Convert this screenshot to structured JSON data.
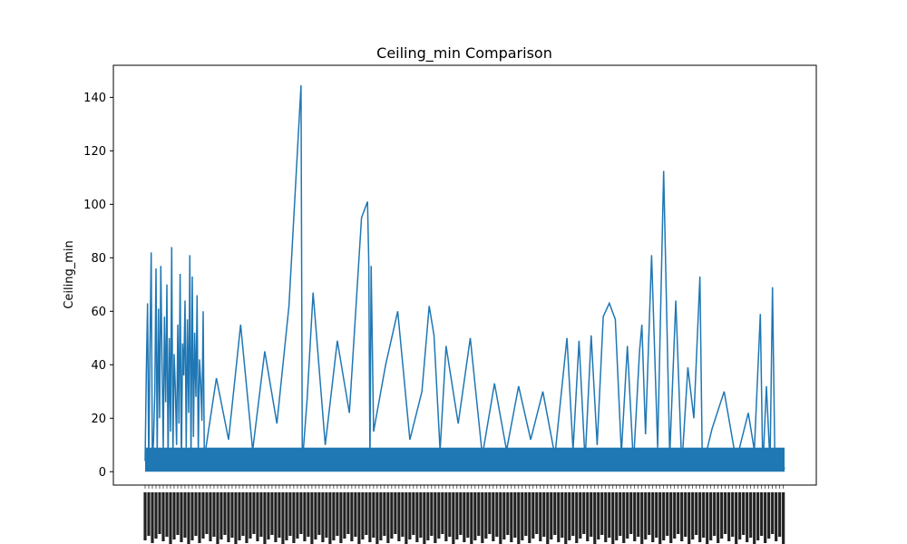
{
  "chart_data": {
    "type": "line",
    "title": "Ceiling_min Comparison",
    "xlabel": "",
    "ylabel": "Ceiling_min",
    "ylim": [
      -5,
      152
    ],
    "yticks": [
      0,
      20,
      40,
      60,
      80,
      100,
      120,
      140
    ],
    "grid": false,
    "legend": "none",
    "line_color": "#1f77b4",
    "category_count": 530,
    "notes_visible": "x-axis category tick labels are dense and illegible in the image",
    "points": [
      [
        1,
        4
      ],
      [
        2,
        37
      ],
      [
        3,
        63
      ],
      [
        4,
        2
      ],
      [
        5,
        46
      ],
      [
        6,
        82
      ],
      [
        7,
        3
      ],
      [
        8,
        12
      ],
      [
        9,
        30
      ],
      [
        10,
        76
      ],
      [
        11,
        5
      ],
      [
        12,
        61
      ],
      [
        13,
        20
      ],
      [
        14,
        77
      ],
      [
        15,
        40
      ],
      [
        16,
        8
      ],
      [
        17,
        58
      ],
      [
        18,
        26
      ],
      [
        19,
        70
      ],
      [
        20,
        3
      ],
      [
        21,
        50
      ],
      [
        22,
        15
      ],
      [
        23,
        84
      ],
      [
        24,
        6
      ],
      [
        25,
        44
      ],
      [
        26,
        31
      ],
      [
        27,
        10
      ],
      [
        28,
        55
      ],
      [
        29,
        18
      ],
      [
        30,
        74
      ],
      [
        31,
        2
      ],
      [
        32,
        48
      ],
      [
        33,
        36
      ],
      [
        34,
        64
      ],
      [
        35,
        9
      ],
      [
        36,
        57
      ],
      [
        37,
        22
      ],
      [
        38,
        81
      ],
      [
        39,
        4
      ],
      [
        40,
        73
      ],
      [
        41,
        13
      ],
      [
        42,
        52
      ],
      [
        43,
        28
      ],
      [
        44,
        66
      ],
      [
        45,
        7
      ],
      [
        46,
        42
      ],
      [
        47,
        33
      ],
      [
        48,
        19
      ],
      [
        49,
        60
      ],
      [
        50,
        5
      ],
      [
        60,
        35
      ],
      [
        70,
        12
      ],
      [
        80,
        55
      ],
      [
        90,
        8
      ],
      [
        100,
        45
      ],
      [
        110,
        18
      ],
      [
        120,
        62
      ],
      [
        130,
        144.5
      ],
      [
        131,
        3
      ],
      [
        135,
        27
      ],
      [
        140,
        67
      ],
      [
        150,
        10
      ],
      [
        160,
        49
      ],
      [
        170,
        22
      ],
      [
        180,
        95
      ],
      [
        185,
        101
      ],
      [
        186,
        78
      ],
      [
        187,
        3
      ],
      [
        188,
        77
      ],
      [
        190,
        15
      ],
      [
        200,
        40
      ],
      [
        210,
        60
      ],
      [
        220,
        12
      ],
      [
        230,
        30
      ],
      [
        236,
        62
      ],
      [
        240,
        51
      ],
      [
        245,
        8
      ],
      [
        250,
        47
      ],
      [
        260,
        18
      ],
      [
        270,
        50
      ],
      [
        280,
        6
      ],
      [
        290,
        33
      ],
      [
        300,
        8
      ],
      [
        310,
        32
      ],
      [
        320,
        12
      ],
      [
        330,
        30
      ],
      [
        340,
        6
      ],
      [
        350,
        50
      ],
      [
        355,
        8
      ],
      [
        360,
        49
      ],
      [
        365,
        4
      ],
      [
        370,
        51
      ],
      [
        375,
        10
      ],
      [
        380,
        58
      ],
      [
        385,
        63
      ],
      [
        390,
        57
      ],
      [
        395,
        7
      ],
      [
        400,
        47
      ],
      [
        405,
        3
      ],
      [
        410,
        45
      ],
      [
        412,
        55
      ],
      [
        415,
        14
      ],
      [
        420,
        81
      ],
      [
        425,
        9
      ],
      [
        430,
        112.5
      ],
      [
        435,
        6
      ],
      [
        440,
        64
      ],
      [
        445,
        2
      ],
      [
        450,
        39
      ],
      [
        455,
        20
      ],
      [
        460,
        73
      ],
      [
        462,
        1
      ],
      [
        470,
        16
      ],
      [
        480,
        30
      ],
      [
        490,
        4
      ],
      [
        500,
        22
      ],
      [
        505,
        8
      ],
      [
        510,
        59
      ],
      [
        512,
        1
      ],
      [
        515,
        32
      ],
      [
        518,
        3
      ],
      [
        520,
        69
      ],
      [
        522,
        5
      ],
      [
        525,
        2
      ],
      [
        528,
        4
      ],
      [
        530,
        1
      ]
    ]
  }
}
